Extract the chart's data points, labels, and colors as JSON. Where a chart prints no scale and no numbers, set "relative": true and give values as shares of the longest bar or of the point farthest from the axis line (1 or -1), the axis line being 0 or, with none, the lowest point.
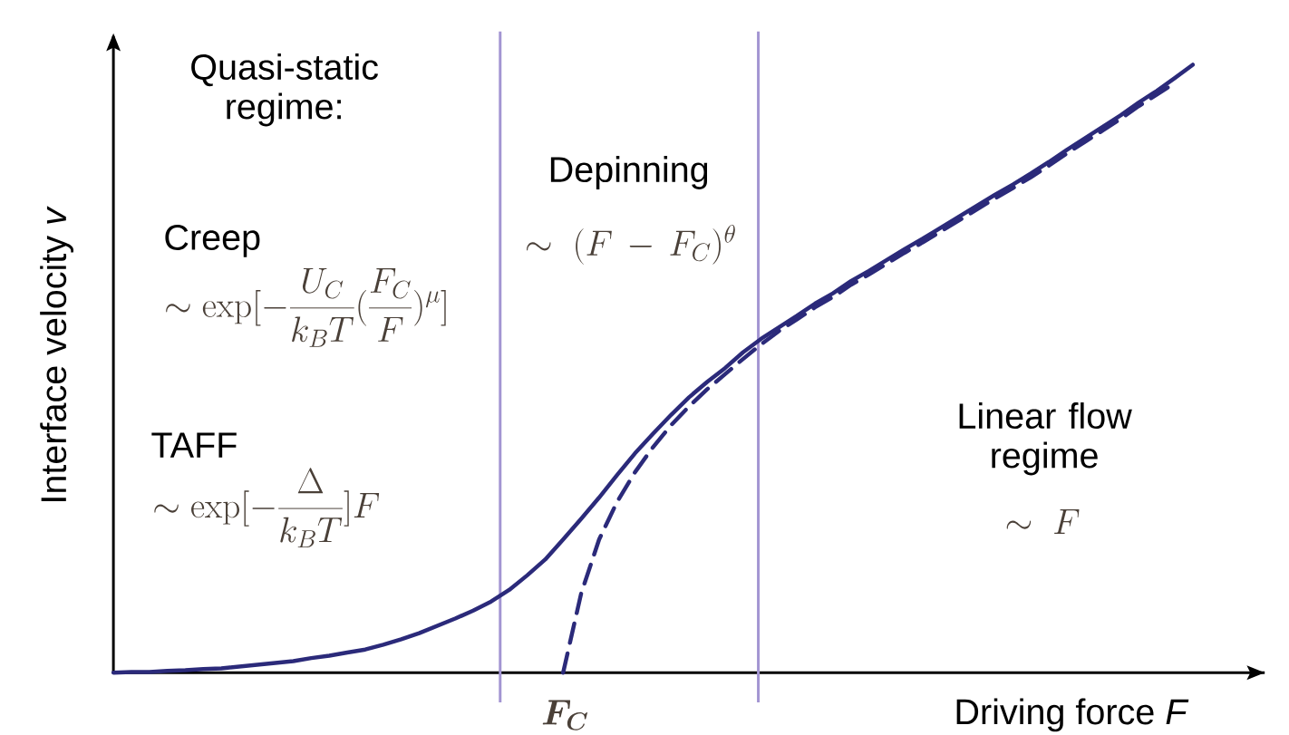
{
  "chart_data": {
    "type": "line",
    "relative": true,
    "xlabel": "Driving force *F*",
    "ylabel": "Interface velocity *v*",
    "categories": [
      null,
      null,
      null,
      null,
      null,
      null,
      null,
      null,
      null,
      null,
      null,
      null,
      null,
      null,
      null,
      null,
      null,
      null,
      null,
      null,
      null,
      null,
      null,
      null,
      null,
      null,
      null,
      null,
      null,
      null,
      null,
      null,
      null,
      null,
      null,
      null,
      null,
      null,
      null,
      null,
      null,
      null,
      null,
      null,
      null,
      null,
      null,
      null,
      null,
      null,
      null,
      null,
      null,
      null,
      null,
      null,
      null,
      null,
      null,
      null,
      null
    ],
    "series": [
      {
        "color": "#2b2a7a",
        "line_style": "solid",
        "values": [
          0,
          0.001,
          0.001,
          0.003,
          0.004,
          0.006,
          0.007,
          0.01,
          0.013,
          0.016,
          0.019,
          0.024,
          0.028,
          0.033,
          0.038,
          0.046,
          0.055,
          0.065,
          0.077,
          0.089,
          0.102,
          0.117,
          0.136,
          0.16,
          0.186,
          0.219,
          0.253,
          0.288,
          0.325,
          0.361,
          0.393,
          0.424,
          0.453,
          0.478,
          0.501,
          0.527,
          0.549,
          0.568,
          0.587,
          0.607,
          0.624,
          0.644,
          0.661,
          0.679,
          0.697,
          0.714,
          0.732,
          0.75,
          0.768,
          0.786,
          0.803,
          0.821,
          0.84,
          0.86,
          0.879,
          0.898,
          0.917,
          0.938,
          0.957,
          0.978,
          1.0
        ]
      },
      {
        "color": "#2b2a7a",
        "line_style": "dashed",
        "values": [
          null,
          null,
          null,
          null,
          null,
          null,
          null,
          null,
          null,
          null,
          null,
          null,
          null,
          null,
          null,
          null,
          null,
          null,
          null,
          null,
          null,
          null,
          null,
          null,
          null,
          0,
          0.13,
          0.219,
          0.281,
          0.33,
          0.371,
          0.407,
          0.438,
          0.466,
          0.491,
          0.516,
          0.54,
          0.562,
          0.581,
          0.601,
          0.618,
          0.638,
          0.655,
          0.673,
          0.691,
          0.708,
          0.726,
          0.744,
          0.762,
          0.78,
          0.797,
          0.815,
          0.834,
          0.854,
          0.873,
          0.892,
          0.911,
          0.932,
          0.951,
          0.97,
          null
        ]
      }
    ],
    "annotations": [
      "Quasi-static regime:",
      "Creep",
      "\\sim \\exp[-\\frac{U_C}{k_BT}(\\frac{F_C}{F})^{\\mu}]",
      "TAFF",
      "\\sim \\exp[-\\frac{\\Delta}{k_BT}]F",
      "Depinning",
      "\\sim\\ (F\\,-\\,F_C)^{\\theta}",
      "Linear flow regime",
      "\\sim\\ F",
      "\\boldsymbol{F_C}"
    ]
  }
}
